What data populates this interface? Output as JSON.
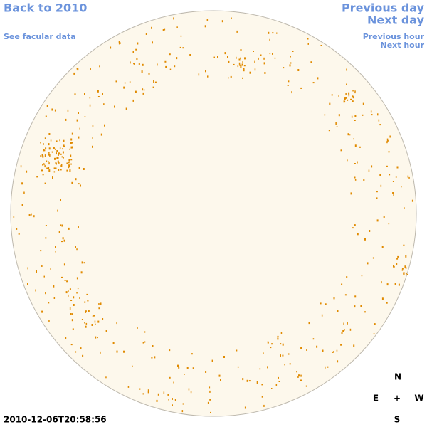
{
  "navigation": {
    "back": "Back to 2010",
    "facular_data": "See facular data",
    "previous_day": "Previous day",
    "next_day": "Next day",
    "previous_hour": "Previous hour",
    "next_hour": "Next hour"
  },
  "timestamp": "2010-12-06T20:58:56",
  "compass": {
    "north": "N",
    "east": "E",
    "center": "+",
    "west": "W",
    "south": "S"
  }
}
